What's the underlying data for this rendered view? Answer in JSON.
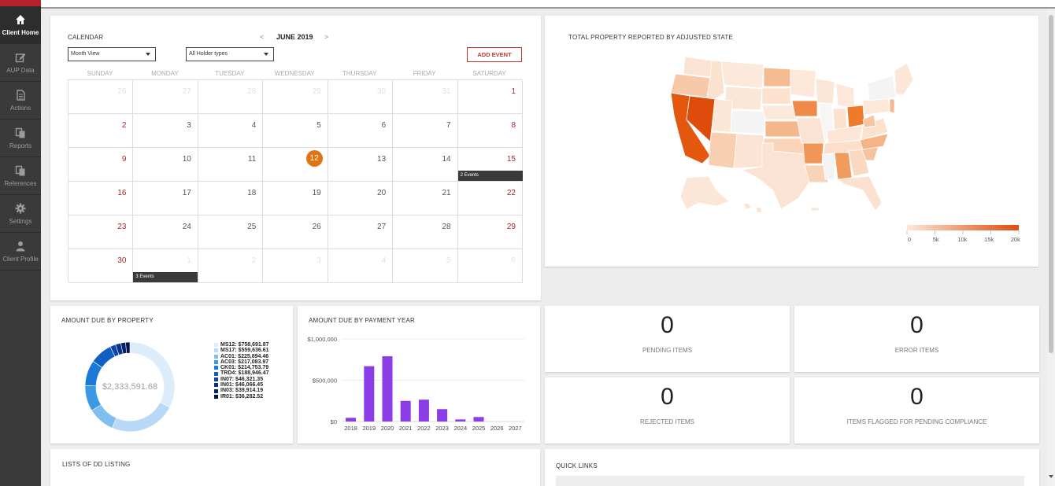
{
  "sidebar": {
    "items": [
      {
        "label": "Client Home",
        "icon": "home-icon",
        "active": true
      },
      {
        "label": "AUP Data",
        "icon": "edit-icon"
      },
      {
        "label": "Actions",
        "icon": "document-icon"
      },
      {
        "label": "Reports",
        "icon": "copy-icon"
      },
      {
        "label": "References",
        "icon": "copy-icon"
      },
      {
        "label": "Settings",
        "icon": "gear-icon"
      },
      {
        "label": "Client Profile",
        "icon": "user-icon"
      }
    ]
  },
  "calendar": {
    "title": "CALENDAR",
    "month": "JUNE 2019",
    "prev": "<",
    "next": ">",
    "view_select": "Month View",
    "holder_select": "All Holder types",
    "add_event": "ADD EVENT",
    "weekdays": [
      "SUNDAY",
      "MONDAY",
      "TUESDAY",
      "WEDNESDAY",
      "THURSDAY",
      "FRIDAY",
      "SATURDAY"
    ],
    "weeks": [
      [
        "26",
        "27",
        "28",
        "29",
        "30",
        "31",
        "1"
      ],
      [
        "2",
        "3",
        "4",
        "5",
        "6",
        "7",
        "8"
      ],
      [
        "9",
        "10",
        "11",
        "12",
        "13",
        "14",
        "15"
      ],
      [
        "16",
        "17",
        "18",
        "19",
        "20",
        "21",
        "22"
      ],
      [
        "23",
        "24",
        "25",
        "26",
        "27",
        "28",
        "29"
      ],
      [
        "30",
        "1",
        "2",
        "3",
        "4",
        "5",
        "6"
      ]
    ],
    "today": "12",
    "events": [
      {
        "week": 2,
        "day": 6,
        "label": "2 Events"
      },
      {
        "week": 5,
        "day": 1,
        "label": "3 Events"
      }
    ]
  },
  "map": {
    "title": "TOTAL PROPERTY REPORTED BY ADJUSTED STATE",
    "scale_ticks": [
      "0",
      "5k",
      "10k",
      "15k",
      "20k"
    ],
    "colors": {
      "low": "#fbe3d2",
      "high": "#e04e0b"
    }
  },
  "donut": {
    "title": "AMOUNT DUE BY PROPERTY",
    "total": "$2,333,591.68",
    "items": [
      {
        "label": "MS12: $758,691.87",
        "value": 758691.87,
        "color": "#dcecfb"
      },
      {
        "label": "MS17: $559,636.61",
        "value": 559636.61,
        "color": "#b8daf7"
      },
      {
        "label": "AC01: $225,894.46",
        "value": 225894.46,
        "color": "#7ebff0"
      },
      {
        "label": "AC03: $217,083.97",
        "value": 217083.97,
        "color": "#3a9ae8"
      },
      {
        "label": "CK01: $214,753.79",
        "value": 214753.79,
        "color": "#1b7ad8"
      },
      {
        "label": "TRD4: $188,946.47",
        "value": 188946.47,
        "color": "#0f5fc2"
      },
      {
        "label": "IN07: $46,321.35",
        "value": 46321.35,
        "color": "#0a45a6"
      },
      {
        "label": "IN01: $46,066.45",
        "value": 46066.45,
        "color": "#07338a"
      },
      {
        "label": "IN03: $39,914.19",
        "value": 39914.19,
        "color": "#05226c"
      },
      {
        "label": "IR01: $36,282.52",
        "value": 36282.52,
        "color": "#03124e"
      }
    ]
  },
  "chart_data": {
    "type": "bar",
    "title": "AMOUNT DUE BY PAYMENT YEAR",
    "categories": [
      "2018",
      "2019",
      "2020",
      "2021",
      "2022",
      "2023",
      "2024",
      "2025",
      "2026",
      "2027"
    ],
    "values": [
      45000,
      670000,
      790000,
      250000,
      265000,
      150000,
      25000,
      55000,
      0,
      0
    ],
    "ylim": [
      0,
      1000000
    ],
    "yticks": [
      "$0",
      "$500,000",
      "$1,000,000"
    ],
    "ytick_values": [
      0,
      500000,
      1000000
    ],
    "color": "#8b3ee8",
    "grid": true
  },
  "kpis": [
    {
      "value": "0",
      "label": "PENDING ITEMS"
    },
    {
      "value": "0",
      "label": "ERROR ITEMS"
    },
    {
      "value": "0",
      "label": "REJECTED ITEMS"
    },
    {
      "value": "0",
      "label": "ITEMS FLAGGED FOR PENDING COMPLIANCE"
    }
  ],
  "lists": {
    "title": "LISTS OF DD LISTING"
  },
  "quick_links": {
    "title": "QUICK LINKS"
  }
}
